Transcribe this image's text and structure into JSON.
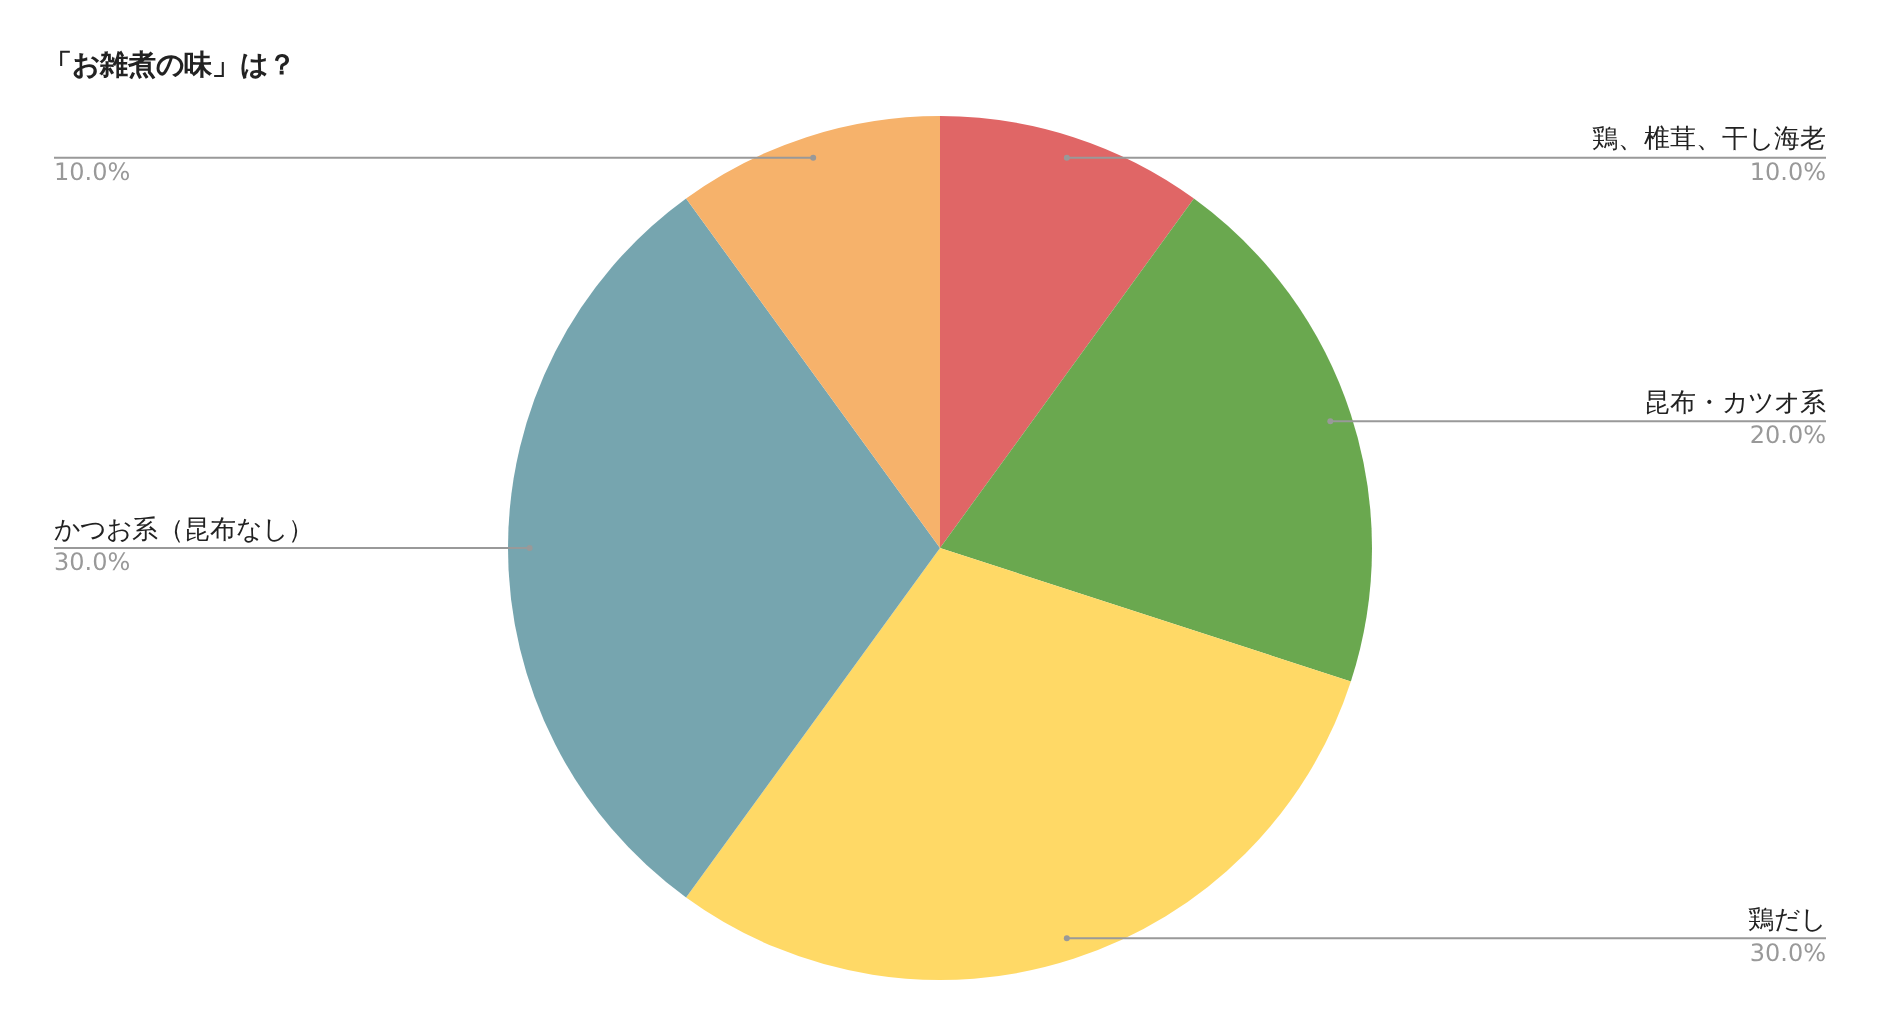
{
  "chart_data": {
    "type": "pie",
    "title": "「お雑煮の味」は？",
    "categories": [
      "鶏、椎茸、干し海老",
      "昆布・カツオ系",
      "鶏だし",
      "かつお系（昆布なし）",
      null
    ],
    "values": [
      10,
      20,
      30,
      30,
      10
    ],
    "value_labels": [
      "10.0%",
      "20.0%",
      "30.0%",
      "30.0%",
      "10.0%"
    ],
    "colors": [
      "#e06666",
      "#6aa84f",
      "#ffd966",
      "#76a5af",
      "#f6b26b"
    ],
    "legend": false
  }
}
